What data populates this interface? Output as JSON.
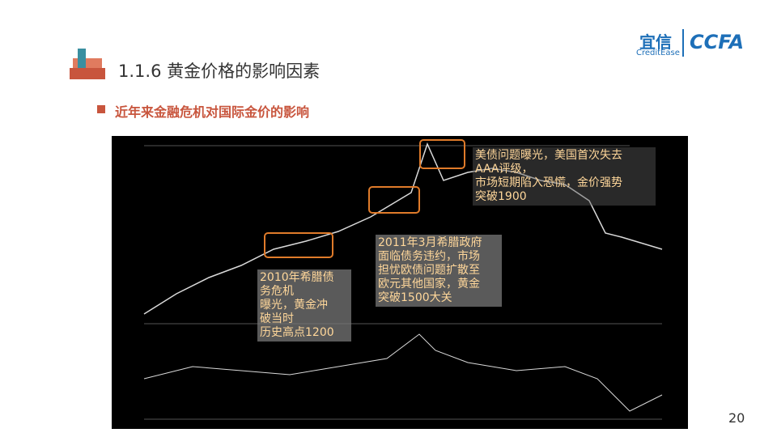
{
  "header": {
    "title": "1.1.6 黄金价格的影响因素",
    "logo_cn": "宜信",
    "logo_en": "CreditEase",
    "logo_ccfa": "CCFA"
  },
  "subtitle": "近年来金融危机对国际金价的影响",
  "annotations": [
    {
      "lines": [
        "2010年希腊债",
        "务危机",
        "曝光，黄金冲",
        "破当时",
        "历史高点1200"
      ]
    },
    {
      "lines": [
        "2011年3月希腊政府",
        "面临债务违约，市场",
        "担忧欧债问题扩散至",
        "欧元其他国家，黄金",
        "突破1500大关"
      ]
    },
    {
      "lines": [
        "美债问题曝光，美国首次失去",
        "AAA评级，",
        "市场短期陷入恐慌，金价强势",
        "突破1900"
      ]
    }
  ],
  "page_number": "20"
}
